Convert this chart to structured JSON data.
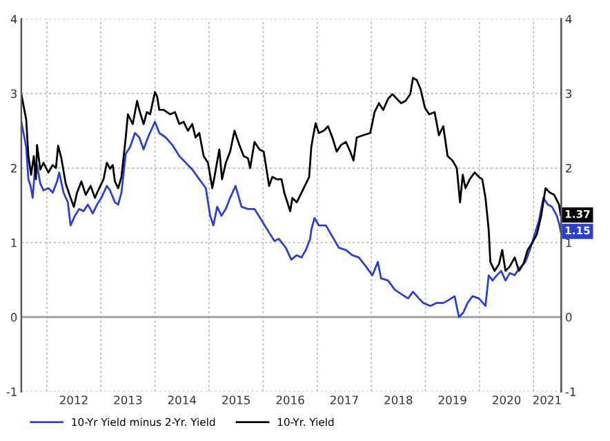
{
  "chart_data": {
    "type": "line",
    "xlim": [
      2011.53,
      2021.51
    ],
    "xticks": [
      {
        "value": 2012,
        "label": null
      },
      {
        "value": 2013,
        "label": null
      },
      {
        "value": 2014,
        "label": null
      },
      {
        "value": 2015,
        "label": null
      },
      {
        "value": 2016,
        "label": null
      },
      {
        "value": 2017,
        "label": null
      },
      {
        "value": 2018,
        "label": null
      },
      {
        "value": 2019,
        "label": null
      },
      {
        "value": 2020,
        "label": null
      },
      {
        "value": 2021,
        "label": null
      },
      {
        "value": 2012.5,
        "label": "2012"
      },
      {
        "value": 2013.5,
        "label": "2013"
      },
      {
        "value": 2014.5,
        "label": "2014"
      },
      {
        "value": 2015.5,
        "label": "2015"
      },
      {
        "value": 2016.5,
        "label": "2016"
      },
      {
        "value": 2017.5,
        "label": "2017"
      },
      {
        "value": 2018.5,
        "label": "2018"
      },
      {
        "value": 2019.5,
        "label": "2019"
      },
      {
        "value": 2020.5,
        "label": "2020"
      },
      {
        "value": 2021.25,
        "label": "2021"
      }
    ],
    "ylim": [
      -1,
      4
    ],
    "yticks": [
      -1,
      0,
      1,
      2,
      3,
      4
    ],
    "y2lim": [
      -1,
      4
    ],
    "y2ticks": [
      -1,
      0,
      1,
      2,
      3,
      4
    ],
    "grid": true,
    "legend": "bottom",
    "line_style": "solid",
    "ref_lines": [
      {
        "axis": "y",
        "value": 0,
        "color": "#9a9a9a"
      }
    ],
    "annotations": [
      {
        "text": "1.15",
        "x": 2021.5,
        "y": 1.15
      },
      {
        "text": "1.37",
        "x": 2021.5,
        "y": 1.37
      }
    ],
    "series": [
      {
        "name": "10-Yr Yield minus 2-Yr. Yield",
        "color": "#2b3fd8",
        "x": [
          2011.53,
          2011.62,
          2011.66,
          2011.7,
          2011.74,
          2011.78,
          2011.82,
          2011.88,
          2011.94,
          2012.03,
          2012.11,
          2012.19,
          2012.23,
          2012.31,
          2012.39,
          2012.44,
          2012.52,
          2012.6,
          2012.68,
          2012.76,
          2012.85,
          2012.93,
          2013.01,
          2013.11,
          2013.17,
          2013.26,
          2013.32,
          2013.38,
          2013.46,
          2013.54,
          2013.63,
          2013.71,
          2013.79,
          2013.87,
          2014.0,
          2014.08,
          2014.2,
          2014.32,
          2014.45,
          2014.57,
          2014.69,
          2014.82,
          2014.94,
          2015.02,
          2015.08,
          2015.15,
          2015.23,
          2015.31,
          2015.39,
          2015.49,
          2015.6,
          2015.72,
          2015.84,
          2015.97,
          2016.13,
          2016.21,
          2016.29,
          2016.42,
          2016.52,
          2016.62,
          2016.71,
          2016.79,
          2016.87,
          2016.89,
          2016.95,
          2017.03,
          2017.16,
          2017.28,
          2017.4,
          2017.53,
          2017.65,
          2017.77,
          2017.9,
          2018.02,
          2018.12,
          2018.18,
          2018.31,
          2018.43,
          2018.55,
          2018.68,
          2018.77,
          2018.88,
          2018.96,
          2019.09,
          2019.21,
          2019.33,
          2019.41,
          2019.54,
          2019.62,
          2019.7,
          2019.78,
          2019.87,
          2019.99,
          2020.11,
          2020.17,
          2020.24,
          2020.32,
          2020.4,
          2020.48,
          2020.56,
          2020.65,
          2020.73,
          2020.85,
          2020.93,
          2021.02,
          2021.1,
          2021.18,
          2021.26,
          2021.34,
          2021.43,
          2021.48,
          2021.5
        ],
        "values": [
          2.62,
          2.28,
          1.85,
          1.76,
          1.6,
          1.98,
          2.04,
          1.79,
          1.7,
          1.73,
          1.67,
          1.82,
          1.94,
          1.67,
          1.54,
          1.23,
          1.36,
          1.45,
          1.42,
          1.51,
          1.39,
          1.51,
          1.6,
          1.76,
          1.7,
          1.54,
          1.51,
          1.67,
          2.19,
          2.28,
          2.47,
          2.41,
          2.25,
          2.41,
          2.62,
          2.47,
          2.41,
          2.31,
          2.16,
          2.07,
          1.98,
          1.85,
          1.73,
          1.36,
          1.23,
          1.48,
          1.36,
          1.45,
          1.6,
          1.76,
          1.48,
          1.45,
          1.45,
          1.3,
          1.11,
          1.02,
          1.05,
          0.93,
          0.77,
          0.83,
          0.8,
          0.9,
          1.05,
          1.17,
          1.33,
          1.23,
          1.23,
          1.08,
          0.93,
          0.9,
          0.83,
          0.8,
          0.68,
          0.56,
          0.74,
          0.52,
          0.49,
          0.37,
          0.31,
          0.25,
          0.34,
          0.25,
          0.19,
          0.15,
          0.19,
          0.19,
          0.22,
          0.28,
          0.0,
          0.06,
          0.19,
          0.28,
          0.25,
          0.15,
          0.56,
          0.49,
          0.56,
          0.62,
          0.49,
          0.59,
          0.56,
          0.65,
          0.74,
          0.9,
          1.11,
          1.3,
          1.6,
          1.51,
          1.48,
          1.36,
          1.23,
          1.15
        ]
      },
      {
        "name": "10-Yr. Yield",
        "color": "#000000",
        "x": [
          2011.53,
          2011.62,
          2011.66,
          2011.71,
          2011.76,
          2011.8,
          2011.82,
          2011.88,
          2011.94,
          2012.03,
          2012.11,
          2012.17,
          2012.21,
          2012.27,
          2012.35,
          2012.44,
          2012.5,
          2012.56,
          2012.64,
          2012.72,
          2012.81,
          2012.89,
          2012.97,
          2013.05,
          2013.11,
          2013.17,
          2013.22,
          2013.26,
          2013.32,
          2013.38,
          2013.46,
          2013.5,
          2013.59,
          2013.67,
          2013.71,
          2013.79,
          2013.85,
          2013.91,
          2014.0,
          2014.04,
          2014.08,
          2014.16,
          2014.28,
          2014.37,
          2014.45,
          2014.53,
          2014.61,
          2014.69,
          2014.75,
          2014.82,
          2014.9,
          2014.98,
          2015.06,
          2015.1,
          2015.19,
          2015.24,
          2015.31,
          2015.39,
          2015.47,
          2015.56,
          2015.64,
          2015.72,
          2015.76,
          2015.84,
          2015.93,
          2016.01,
          2016.05,
          2016.11,
          2016.17,
          2016.25,
          2016.34,
          2016.39,
          2016.5,
          2016.54,
          2016.62,
          2016.71,
          2016.79,
          2016.85,
          2016.89,
          2016.92,
          2016.97,
          2017.03,
          2017.12,
          2017.2,
          2017.28,
          2017.36,
          2017.44,
          2017.53,
          2017.61,
          2017.67,
          2017.73,
          2017.85,
          2017.98,
          2018.06,
          2018.14,
          2018.22,
          2018.31,
          2018.39,
          2018.47,
          2018.55,
          2018.63,
          2018.72,
          2018.77,
          2018.84,
          2018.91,
          2018.99,
          2019.07,
          2019.17,
          2019.25,
          2019.33,
          2019.41,
          2019.5,
          2019.58,
          2019.64,
          2019.69,
          2019.74,
          2019.82,
          2019.91,
          2019.99,
          2020.05,
          2020.11,
          2020.17,
          2020.2,
          2020.28,
          2020.36,
          2020.42,
          2020.48,
          2020.56,
          2020.65,
          2020.73,
          2020.81,
          2020.89,
          2020.97,
          2021.06,
          2021.14,
          2021.22,
          2021.3,
          2021.38,
          2021.47,
          2021.5
        ],
        "values": [
          2.99,
          2.65,
          2.16,
          1.91,
          2.16,
          1.85,
          2.31,
          1.98,
          2.07,
          1.94,
          2.04,
          2.0,
          2.3,
          2.13,
          1.79,
          1.6,
          1.48,
          1.67,
          1.82,
          1.64,
          1.76,
          1.6,
          1.73,
          1.85,
          2.07,
          1.99,
          2.04,
          1.82,
          1.73,
          1.88,
          2.41,
          2.72,
          2.59,
          2.9,
          2.78,
          2.59,
          2.75,
          2.72,
          3.02,
          2.96,
          2.78,
          2.78,
          2.72,
          2.75,
          2.59,
          2.62,
          2.5,
          2.59,
          2.41,
          2.47,
          2.16,
          2.07,
          1.73,
          1.88,
          2.25,
          1.85,
          2.07,
          2.22,
          2.5,
          2.31,
          2.16,
          2.13,
          2.0,
          2.35,
          2.25,
          2.22,
          2.04,
          1.76,
          1.88,
          1.85,
          1.85,
          1.67,
          1.42,
          1.6,
          1.54,
          1.67,
          1.79,
          1.88,
          2.28,
          2.41,
          2.6,
          2.47,
          2.5,
          2.56,
          2.41,
          2.22,
          2.31,
          2.35,
          2.22,
          2.1,
          2.41,
          2.44,
          2.47,
          2.75,
          2.87,
          2.78,
          2.93,
          2.99,
          2.93,
          2.87,
          2.9,
          2.99,
          3.21,
          3.18,
          3.06,
          2.81,
          2.72,
          2.75,
          2.44,
          2.56,
          2.16,
          2.1,
          2.0,
          1.54,
          1.91,
          1.73,
          1.85,
          1.94,
          1.88,
          1.85,
          1.6,
          1.17,
          0.74,
          0.62,
          0.71,
          0.9,
          0.62,
          0.68,
          0.8,
          0.62,
          0.71,
          0.9,
          0.99,
          1.11,
          1.36,
          1.73,
          1.67,
          1.64,
          1.51,
          1.37
        ]
      }
    ]
  }
}
